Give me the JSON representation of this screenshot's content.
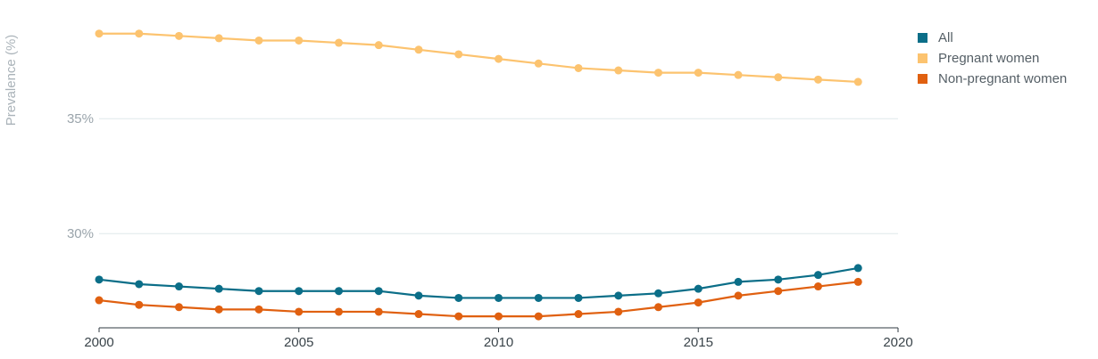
{
  "chart_data": {
    "type": "line",
    "title": "",
    "xlabel": "",
    "ylabel": "Prevalence (%)",
    "y_tick_labels": [
      "30%",
      "35%"
    ],
    "y_ticks": [
      30,
      35
    ],
    "x_tick_labels": [
      "2000",
      "2005",
      "2010",
      "2015",
      "2020"
    ],
    "x_ticks": [
      2000,
      2005,
      2010,
      2015,
      2020
    ],
    "xlim": [
      2000,
      2020
    ],
    "ylim": [
      25.9,
      39.0
    ],
    "grid": "horizontal",
    "legend_position": "top-right",
    "x": [
      2000,
      2001,
      2002,
      2003,
      2004,
      2005,
      2006,
      2007,
      2008,
      2009,
      2010,
      2011,
      2012,
      2013,
      2014,
      2015,
      2016,
      2017,
      2018,
      2019
    ],
    "series": [
      {
        "name": "All",
        "color": "#0b6e88",
        "values": [
          28.0,
          27.8,
          27.7,
          27.6,
          27.5,
          27.5,
          27.5,
          27.5,
          27.3,
          27.2,
          27.2,
          27.2,
          27.2,
          27.3,
          27.4,
          27.6,
          27.9,
          28.0,
          28.2,
          28.5
        ]
      },
      {
        "name": "Pregnant women",
        "color": "#fcc36f",
        "values": [
          38.7,
          38.7,
          38.6,
          38.5,
          38.4,
          38.4,
          38.3,
          38.2,
          38.0,
          37.8,
          37.6,
          37.4,
          37.2,
          37.1,
          37.0,
          37.0,
          36.9,
          36.8,
          36.7,
          36.6
        ]
      },
      {
        "name": "Non-pregnant women",
        "color": "#e06010",
        "values": [
          27.1,
          26.9,
          26.8,
          26.7,
          26.7,
          26.6,
          26.6,
          26.6,
          26.5,
          26.4,
          26.4,
          26.4,
          26.5,
          26.6,
          26.8,
          27.0,
          27.3,
          27.5,
          27.7,
          27.9
        ]
      }
    ]
  }
}
